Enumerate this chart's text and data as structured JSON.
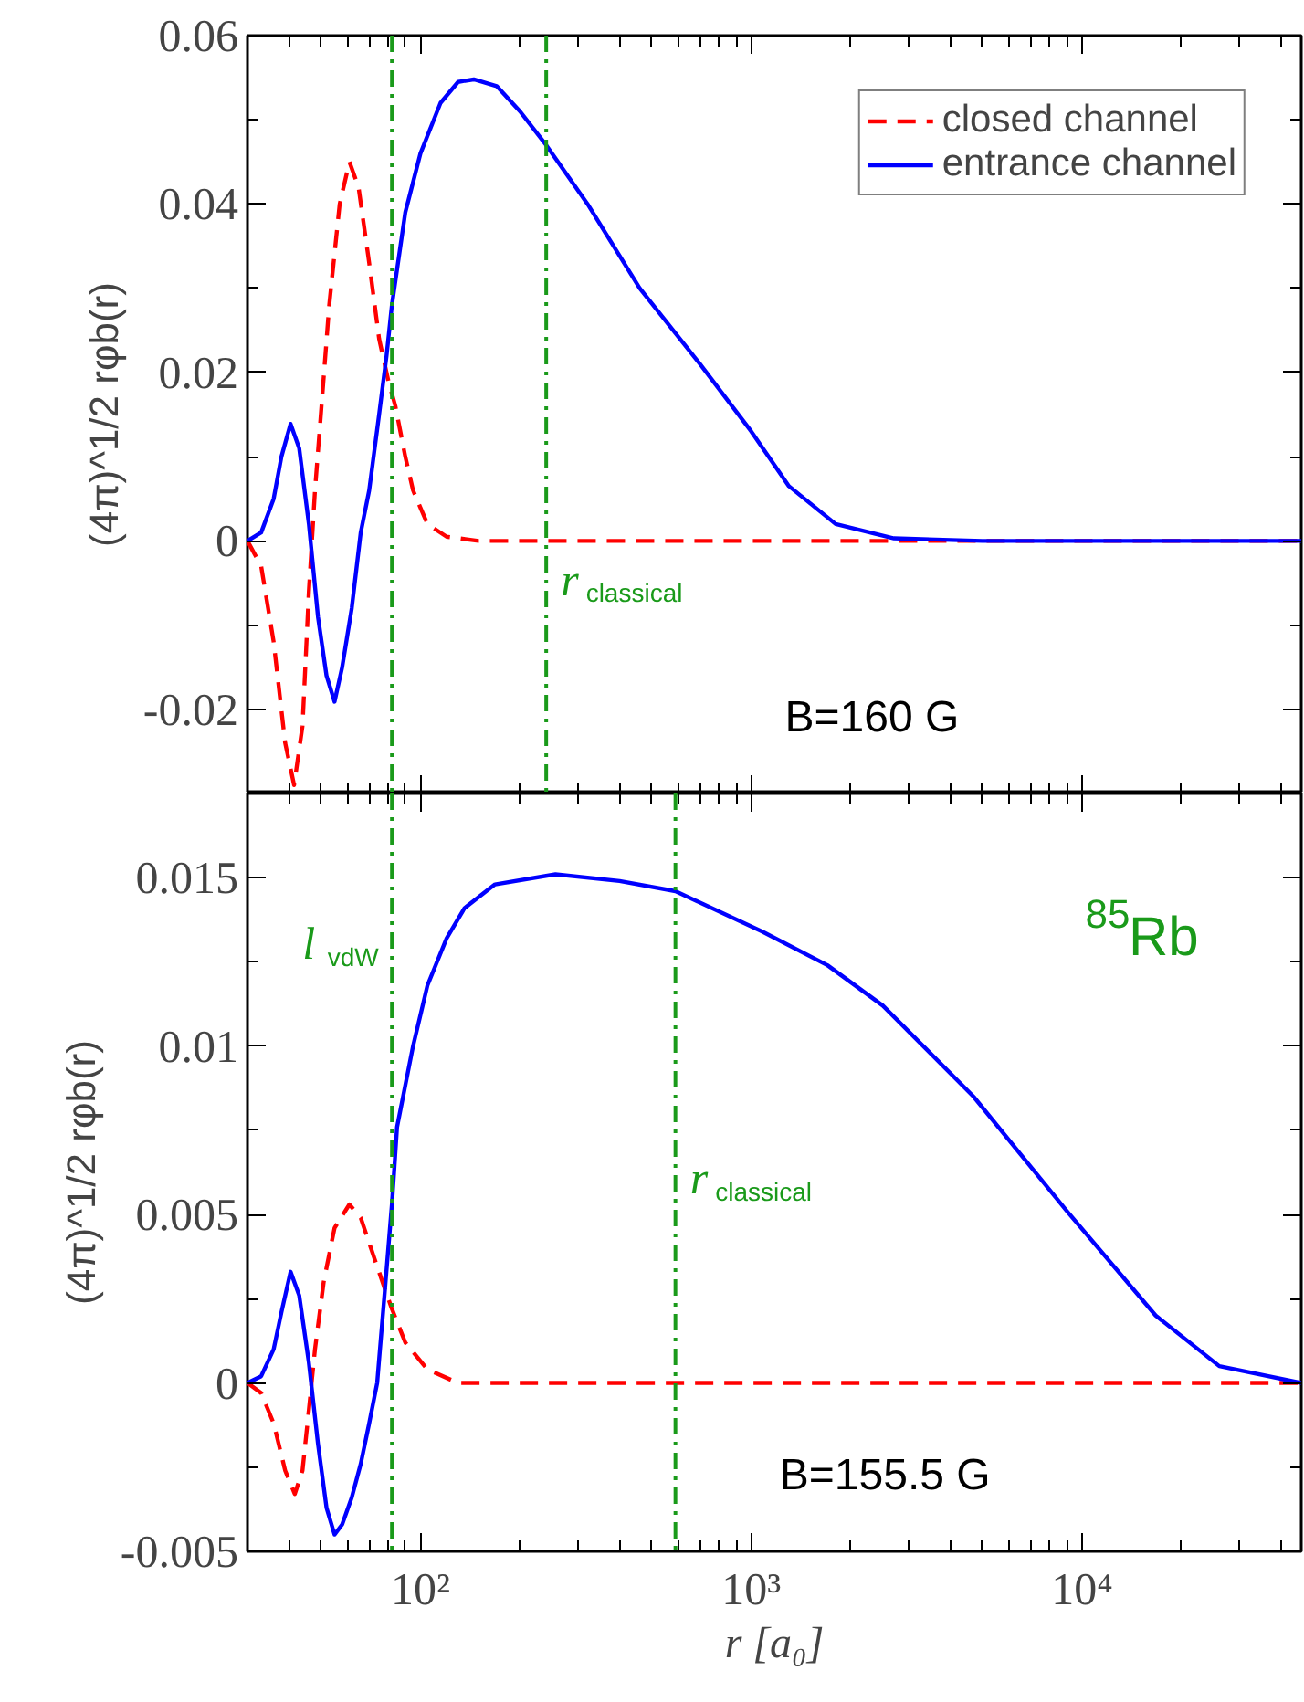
{
  "chart_data": [
    {
      "type": "line",
      "ylabel": "(4π)^1/2 rφb(r)",
      "log": "x",
      "xlim": [
        30,
        46000
      ],
      "xticks": [
        {
          "value": 100,
          "label": null
        },
        {
          "value": 1000,
          "label": null
        },
        {
          "value": 10000,
          "label": null
        }
      ],
      "ylim": [
        -0.03,
        0.06
      ],
      "yticks": [
        -0.02,
        0,
        0.02,
        0.04,
        0.06
      ],
      "tick_labels": "y",
      "legend": "top right",
      "series": [
        {
          "name": "closed channel",
          "color": "#ff0000",
          "line_style": "dashed",
          "x": [
            30,
            33,
            36,
            39,
            41.5,
            44,
            46,
            48,
            50,
            53,
            57,
            61,
            65,
            70,
            75,
            80,
            84,
            90,
            95,
            105,
            120,
            150,
            46000
          ],
          "values": [
            0,
            -0.003,
            -0.012,
            -0.024,
            -0.029,
            -0.022,
            -0.006,
            0.006,
            0.015,
            0.028,
            0.04,
            0.045,
            0.042,
            0.033,
            0.024,
            0.019,
            0.016,
            0.01,
            0.006,
            0.002,
            0.0005,
            0,
            0
          ]
        },
        {
          "name": "entrance channel",
          "color": "#0000ff",
          "line_style": "solid",
          "x": [
            30,
            33,
            36,
            38,
            40.5,
            43,
            46,
            49,
            52,
            55,
            58,
            62,
            66,
            70,
            75,
            79,
            82,
            90,
            100,
            115,
            130,
            145,
            170,
            200,
            240,
            320,
            460,
            700,
            1000,
            1300,
            1800,
            2700,
            5000,
            46000
          ],
          "values": [
            0,
            0.001,
            0.005,
            0.01,
            0.0139,
            0.011,
            0.002,
            -0.009,
            -0.016,
            -0.0191,
            -0.015,
            -0.008,
            0.001,
            0.006,
            0.015,
            0.022,
            0.028,
            0.039,
            0.046,
            0.052,
            0.0545,
            0.0548,
            0.054,
            0.051,
            0.047,
            0.04,
            0.03,
            0.021,
            0.013,
            0.0065,
            0.002,
            0.0003,
            0,
            0
          ]
        }
      ],
      "ref_lines": [
        {
          "axis": "x",
          "value": 82,
          "color": "#1a9a1a",
          "line_style": "dashdot"
        },
        {
          "axis": "x",
          "value": 240,
          "label": "r$_{classical}$",
          "color": "#1a9a1a",
          "line_style": "dashdot"
        }
      ],
      "annotations": [
        "B=160 G"
      ]
    },
    {
      "type": "line",
      "ylabel": "(4π)^1/2 rφb(r)",
      "xlabel": "r [a₀]",
      "log": "x",
      "xlim": [
        30,
        46000
      ],
      "xticks": [
        {
          "value": 100,
          "label": "10²"
        },
        {
          "value": 1000,
          "label": "10³"
        },
        {
          "value": 10000,
          "label": "10⁴"
        }
      ],
      "ylim": [
        -0.005,
        0.0175
      ],
      "yticks": [
        -0.005,
        0,
        0.005,
        0.01,
        0.015
      ],
      "series": [
        {
          "color": "#ff0000",
          "line_style": "dashed",
          "x": [
            30,
            33,
            36,
            39,
            41.7,
            44,
            46,
            48,
            51,
            55,
            61,
            66,
            72,
            78,
            82,
            90,
            105,
            130,
            46000
          ],
          "values": [
            0,
            -0.0003,
            -0.0012,
            -0.0026,
            -0.0033,
            -0.0026,
            -0.0008,
            0.001,
            0.003,
            0.0046,
            0.0053,
            0.0049,
            0.0038,
            0.0028,
            0.0022,
            0.0012,
            0.0004,
            0,
            0
          ]
        },
        {
          "color": "#0000ff",
          "line_style": "solid",
          "x": [
            30,
            33,
            36,
            38,
            40.5,
            43,
            46,
            49,
            52,
            55,
            58,
            62,
            66,
            70,
            74,
            78,
            82,
            85,
            95,
            105,
            120,
            136,
            168,
            256,
            400,
            590,
            1080,
            1700,
            2500,
            4700,
            9000,
            16700,
            26000,
            46000
          ],
          "values": [
            0,
            0.0002,
            0.001,
            0.0021,
            0.0033,
            0.0026,
            0.0006,
            -0.0018,
            -0.0037,
            -0.0045,
            -0.0042,
            -0.0034,
            -0.0024,
            -0.0012,
            0,
            0.0027,
            0.0053,
            0.0076,
            0.01,
            0.0118,
            0.0132,
            0.0141,
            0.0148,
            0.0151,
            0.0149,
            0.0146,
            0.0134,
            0.0124,
            0.0112,
            0.0085,
            0.0051,
            0.002,
            0.0005,
            0
          ]
        }
      ],
      "ref_lines": [
        {
          "axis": "x",
          "value": 82,
          "label": "l$_{vdW}$",
          "color": "#1a9a1a",
          "line_style": "dashdot"
        },
        {
          "axis": "x",
          "value": 590,
          "label": "r$_{classical}$",
          "color": "#1a9a1a",
          "line_style": "dashdot"
        }
      ],
      "annotations": [
        "B=155.5 G",
        "$^{85}$Rb"
      ]
    }
  ]
}
